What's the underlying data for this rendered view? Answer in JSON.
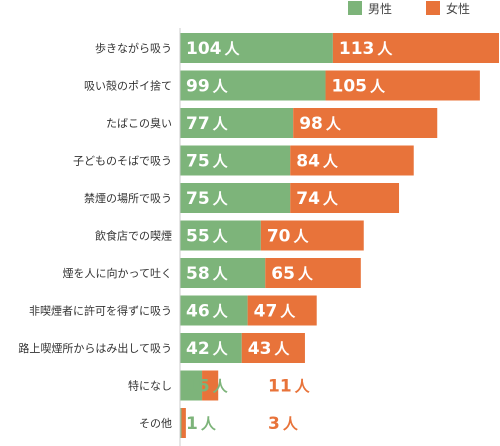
{
  "colors": {
    "male": "#7db47a",
    "female": "#e8733a",
    "label": "#333333",
    "value_on_bar": "#ffffff"
  },
  "chart_data": {
    "type": "bar",
    "orientation": "horizontal",
    "stacked": true,
    "legend_position": "top-right",
    "value_suffix": "人",
    "categories": [
      "歩きながら吸う",
      "吸い殻のポイ捨て",
      "たばこの臭い",
      "子どものそばで吸う",
      "禁煙の場所で吸う",
      "飲食店での喫煙",
      "煙を人に向かって吐く",
      "非喫煙者に許可を得ずに吸う",
      "路上喫煙所からはみ出して吸う",
      "特になし",
      "その他"
    ],
    "series": [
      {
        "name": "男性",
        "values": [
          104,
          99,
          77,
          75,
          75,
          55,
          58,
          46,
          42,
          15,
          1
        ]
      },
      {
        "name": "女性",
        "values": [
          113,
          105,
          98,
          84,
          74,
          70,
          65,
          47,
          43,
          11,
          3
        ]
      }
    ]
  }
}
